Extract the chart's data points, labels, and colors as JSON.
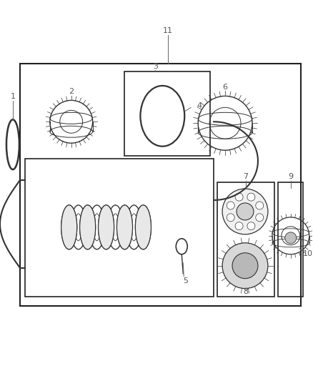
{
  "background_color": "#ffffff",
  "border_color": "#222222",
  "line_color": "#333333",
  "label_color": "#666666",
  "fig_width": 4.38,
  "fig_height": 5.33,
  "dpi": 100
}
